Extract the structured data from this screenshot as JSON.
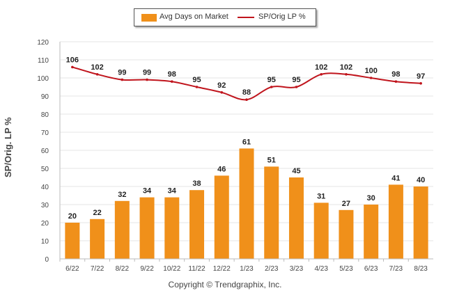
{
  "colors": {
    "bar": "#F0901A",
    "line": "#C0141C",
    "grid": "#e6e6e6",
    "text": "#333333"
  },
  "legend": {
    "series1": "Avg Days on Market",
    "series2": "SP/Orig LP %"
  },
  "ylabel": "SP/Orig. LP %",
  "copyright": "Copyright © Trendgraphix, Inc.",
  "chart_data": {
    "type": "bar",
    "title": "",
    "xlabel": "",
    "ylabel": "SP/Orig. LP %",
    "ylim": [
      0,
      120
    ],
    "yticks": [
      0,
      10,
      20,
      30,
      40,
      50,
      60,
      70,
      80,
      90,
      100,
      110,
      120
    ],
    "grid": true,
    "legend_position": "top-center",
    "categories": [
      "6/22",
      "7/22",
      "8/22",
      "9/22",
      "10/22",
      "11/22",
      "12/22",
      "1/23",
      "2/23",
      "3/23",
      "4/23",
      "5/23",
      "6/23",
      "7/23",
      "8/23"
    ],
    "series": [
      {
        "name": "Avg Days on Market",
        "type": "bar",
        "values": [
          20,
          22,
          32,
          34,
          34,
          38,
          46,
          61,
          51,
          45,
          31,
          27,
          30,
          41,
          40
        ]
      },
      {
        "name": "SP/Orig LP %",
        "type": "line",
        "values": [
          106,
          102,
          99,
          99,
          98,
          95,
          92,
          88,
          95,
          95,
          102,
          102,
          100,
          98,
          97
        ]
      }
    ]
  }
}
